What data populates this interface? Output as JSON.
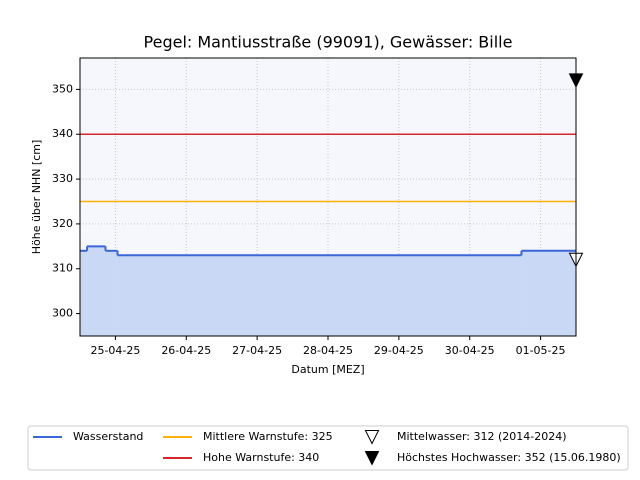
{
  "chart_data": {
    "type": "step-area",
    "title": "Pegel:  Mantiusstraße (99091), Gewässer:  Bille",
    "x_label": "Datum [MEZ]",
    "y_label": "Höhe über NHN [cm]",
    "xlim": [
      -0.5,
      6.5
    ],
    "xticks": [
      {
        "value": 0,
        "label": "25-04-25"
      },
      {
        "value": 1,
        "label": "26-04-25"
      },
      {
        "value": 2,
        "label": "27-04-25"
      },
      {
        "value": 3,
        "label": "28-04-25"
      },
      {
        "value": 4,
        "label": "29-04-25"
      },
      {
        "value": 5,
        "label": "30-04-25"
      },
      {
        "value": 6,
        "label": "01-05-25"
      }
    ],
    "ylim": [
      295,
      357
    ],
    "yticks": [
      300,
      310,
      320,
      330,
      340,
      350
    ],
    "grid": true,
    "series": [
      {
        "name": "Wasserstand",
        "color": "#3a66d6",
        "fill": "#c9d8f5",
        "x": [
          -0.5,
          -0.4,
          -0.14,
          0.03,
          5.73
        ],
        "values": [
          314,
          315,
          314,
          313,
          314
        ]
      }
    ],
    "reference_lines": [
      {
        "name": "Mittlere Warnstufe: 325",
        "value": 325,
        "color": "#ffb000"
      },
      {
        "name": "Hohe Warnstufe: 340",
        "value": 340,
        "color": "#d62728"
      }
    ],
    "markers": [
      {
        "name": "Mittelwasser: 312 (2014-2024)",
        "x": 6.5,
        "value": 312,
        "color": "#000000",
        "filled": false
      },
      {
        "name": "Höchstes Hochwasser: 352 (15.06.1980)",
        "x": 6.5,
        "value": 352,
        "color": "#000000",
        "filled": true
      }
    ],
    "legend": "bottom"
  }
}
